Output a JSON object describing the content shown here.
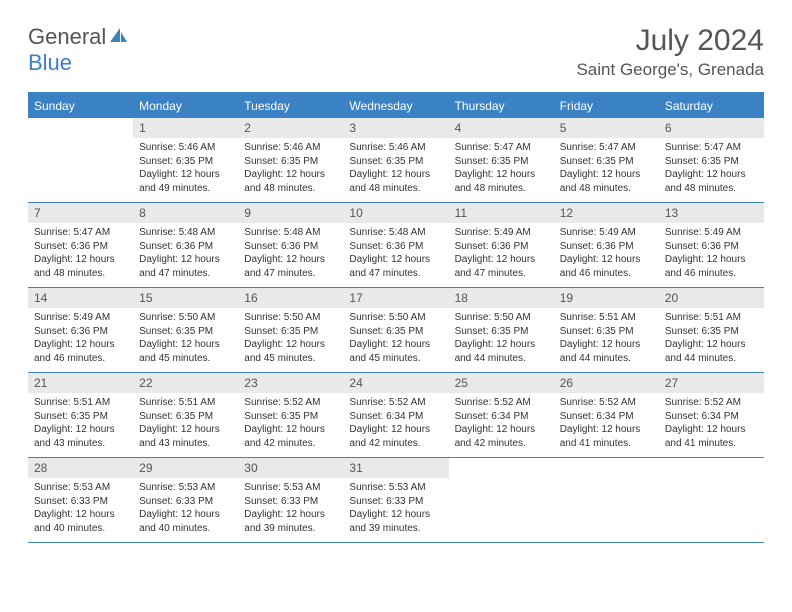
{
  "brand": {
    "word1": "General",
    "word2": "Blue"
  },
  "title": "July 2024",
  "location": "Saint George's, Grenada",
  "colors": {
    "accent": "#3b82c4",
    "daynum_bg": "#e9e9e9",
    "text": "#333333",
    "muted": "#555555"
  },
  "weekdays": [
    "Sunday",
    "Monday",
    "Tuesday",
    "Wednesday",
    "Thursday",
    "Friday",
    "Saturday"
  ],
  "weeks": [
    [
      {
        "n": "",
        "sr": "",
        "ss": "",
        "d1": "",
        "d2": "",
        "empty": true
      },
      {
        "n": "1",
        "sr": "Sunrise: 5:46 AM",
        "ss": "Sunset: 6:35 PM",
        "d1": "Daylight: 12 hours",
        "d2": "and 49 minutes."
      },
      {
        "n": "2",
        "sr": "Sunrise: 5:46 AM",
        "ss": "Sunset: 6:35 PM",
        "d1": "Daylight: 12 hours",
        "d2": "and 48 minutes."
      },
      {
        "n": "3",
        "sr": "Sunrise: 5:46 AM",
        "ss": "Sunset: 6:35 PM",
        "d1": "Daylight: 12 hours",
        "d2": "and 48 minutes."
      },
      {
        "n": "4",
        "sr": "Sunrise: 5:47 AM",
        "ss": "Sunset: 6:35 PM",
        "d1": "Daylight: 12 hours",
        "d2": "and 48 minutes."
      },
      {
        "n": "5",
        "sr": "Sunrise: 5:47 AM",
        "ss": "Sunset: 6:35 PM",
        "d1": "Daylight: 12 hours",
        "d2": "and 48 minutes."
      },
      {
        "n": "6",
        "sr": "Sunrise: 5:47 AM",
        "ss": "Sunset: 6:35 PM",
        "d1": "Daylight: 12 hours",
        "d2": "and 48 minutes."
      }
    ],
    [
      {
        "n": "7",
        "sr": "Sunrise: 5:47 AM",
        "ss": "Sunset: 6:36 PM",
        "d1": "Daylight: 12 hours",
        "d2": "and 48 minutes."
      },
      {
        "n": "8",
        "sr": "Sunrise: 5:48 AM",
        "ss": "Sunset: 6:36 PM",
        "d1": "Daylight: 12 hours",
        "d2": "and 47 minutes."
      },
      {
        "n": "9",
        "sr": "Sunrise: 5:48 AM",
        "ss": "Sunset: 6:36 PM",
        "d1": "Daylight: 12 hours",
        "d2": "and 47 minutes."
      },
      {
        "n": "10",
        "sr": "Sunrise: 5:48 AM",
        "ss": "Sunset: 6:36 PM",
        "d1": "Daylight: 12 hours",
        "d2": "and 47 minutes."
      },
      {
        "n": "11",
        "sr": "Sunrise: 5:49 AM",
        "ss": "Sunset: 6:36 PM",
        "d1": "Daylight: 12 hours",
        "d2": "and 47 minutes."
      },
      {
        "n": "12",
        "sr": "Sunrise: 5:49 AM",
        "ss": "Sunset: 6:36 PM",
        "d1": "Daylight: 12 hours",
        "d2": "and 46 minutes."
      },
      {
        "n": "13",
        "sr": "Sunrise: 5:49 AM",
        "ss": "Sunset: 6:36 PM",
        "d1": "Daylight: 12 hours",
        "d2": "and 46 minutes."
      }
    ],
    [
      {
        "n": "14",
        "sr": "Sunrise: 5:49 AM",
        "ss": "Sunset: 6:36 PM",
        "d1": "Daylight: 12 hours",
        "d2": "and 46 minutes."
      },
      {
        "n": "15",
        "sr": "Sunrise: 5:50 AM",
        "ss": "Sunset: 6:35 PM",
        "d1": "Daylight: 12 hours",
        "d2": "and 45 minutes."
      },
      {
        "n": "16",
        "sr": "Sunrise: 5:50 AM",
        "ss": "Sunset: 6:35 PM",
        "d1": "Daylight: 12 hours",
        "d2": "and 45 minutes."
      },
      {
        "n": "17",
        "sr": "Sunrise: 5:50 AM",
        "ss": "Sunset: 6:35 PM",
        "d1": "Daylight: 12 hours",
        "d2": "and 45 minutes."
      },
      {
        "n": "18",
        "sr": "Sunrise: 5:50 AM",
        "ss": "Sunset: 6:35 PM",
        "d1": "Daylight: 12 hours",
        "d2": "and 44 minutes."
      },
      {
        "n": "19",
        "sr": "Sunrise: 5:51 AM",
        "ss": "Sunset: 6:35 PM",
        "d1": "Daylight: 12 hours",
        "d2": "and 44 minutes."
      },
      {
        "n": "20",
        "sr": "Sunrise: 5:51 AM",
        "ss": "Sunset: 6:35 PM",
        "d1": "Daylight: 12 hours",
        "d2": "and 44 minutes."
      }
    ],
    [
      {
        "n": "21",
        "sr": "Sunrise: 5:51 AM",
        "ss": "Sunset: 6:35 PM",
        "d1": "Daylight: 12 hours",
        "d2": "and 43 minutes."
      },
      {
        "n": "22",
        "sr": "Sunrise: 5:51 AM",
        "ss": "Sunset: 6:35 PM",
        "d1": "Daylight: 12 hours",
        "d2": "and 43 minutes."
      },
      {
        "n": "23",
        "sr": "Sunrise: 5:52 AM",
        "ss": "Sunset: 6:35 PM",
        "d1": "Daylight: 12 hours",
        "d2": "and 42 minutes."
      },
      {
        "n": "24",
        "sr": "Sunrise: 5:52 AM",
        "ss": "Sunset: 6:34 PM",
        "d1": "Daylight: 12 hours",
        "d2": "and 42 minutes."
      },
      {
        "n": "25",
        "sr": "Sunrise: 5:52 AM",
        "ss": "Sunset: 6:34 PM",
        "d1": "Daylight: 12 hours",
        "d2": "and 42 minutes."
      },
      {
        "n": "26",
        "sr": "Sunrise: 5:52 AM",
        "ss": "Sunset: 6:34 PM",
        "d1": "Daylight: 12 hours",
        "d2": "and 41 minutes."
      },
      {
        "n": "27",
        "sr": "Sunrise: 5:52 AM",
        "ss": "Sunset: 6:34 PM",
        "d1": "Daylight: 12 hours",
        "d2": "and 41 minutes."
      }
    ],
    [
      {
        "n": "28",
        "sr": "Sunrise: 5:53 AM",
        "ss": "Sunset: 6:33 PM",
        "d1": "Daylight: 12 hours",
        "d2": "and 40 minutes."
      },
      {
        "n": "29",
        "sr": "Sunrise: 5:53 AM",
        "ss": "Sunset: 6:33 PM",
        "d1": "Daylight: 12 hours",
        "d2": "and 40 minutes."
      },
      {
        "n": "30",
        "sr": "Sunrise: 5:53 AM",
        "ss": "Sunset: 6:33 PM",
        "d1": "Daylight: 12 hours",
        "d2": "and 39 minutes."
      },
      {
        "n": "31",
        "sr": "Sunrise: 5:53 AM",
        "ss": "Sunset: 6:33 PM",
        "d1": "Daylight: 12 hours",
        "d2": "and 39 minutes."
      },
      {
        "n": "",
        "sr": "",
        "ss": "",
        "d1": "",
        "d2": "",
        "empty": true
      },
      {
        "n": "",
        "sr": "",
        "ss": "",
        "d1": "",
        "d2": "",
        "empty": true
      },
      {
        "n": "",
        "sr": "",
        "ss": "",
        "d1": "",
        "d2": "",
        "empty": true
      }
    ]
  ]
}
